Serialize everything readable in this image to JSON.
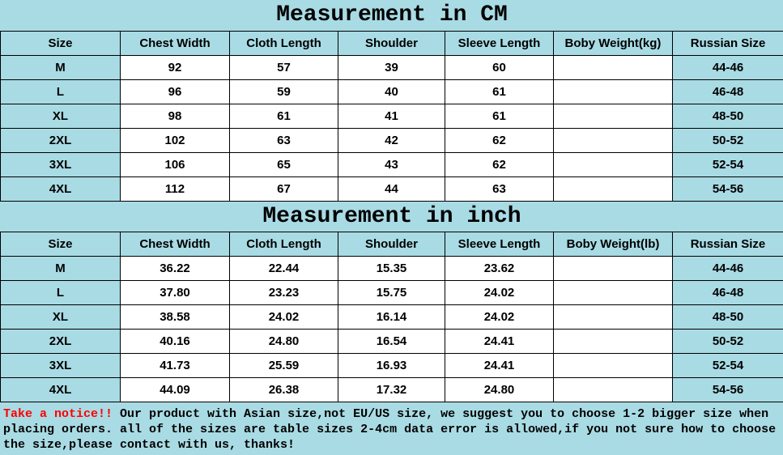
{
  "colors": {
    "background": "#a9dbe4",
    "cell_background": "#ffffff",
    "border": "#000000",
    "notice_label_color": "#ff0000",
    "text": "#000000"
  },
  "chart_data": [
    {
      "type": "table",
      "title": "Measurement in CM",
      "columns": [
        "Size",
        "Chest Width",
        "Cloth Length",
        "Shoulder",
        "Sleeve Length",
        "Boby Weight(kg)",
        "Russian Size"
      ],
      "rows": [
        [
          "M",
          "92",
          "57",
          "39",
          "60",
          "",
          "44-46"
        ],
        [
          "L",
          "96",
          "59",
          "40",
          "61",
          "",
          "46-48"
        ],
        [
          "XL",
          "98",
          "61",
          "41",
          "61",
          "",
          "48-50"
        ],
        [
          "2XL",
          "102",
          "63",
          "42",
          "62",
          "",
          "50-52"
        ],
        [
          "3XL",
          "106",
          "65",
          "43",
          "62",
          "",
          "52-54"
        ],
        [
          "4XL",
          "112",
          "67",
          "44",
          "63",
          "",
          "54-56"
        ]
      ]
    },
    {
      "type": "table",
      "title": "Measurement in inch",
      "columns": [
        "Size",
        "Chest Width",
        "Cloth Length",
        "Shoulder",
        "Sleeve Length",
        "Boby Weight(lb)",
        "Russian Size"
      ],
      "rows": [
        [
          "M",
          "36.22",
          "22.44",
          "15.35",
          "23.62",
          "",
          "44-46"
        ],
        [
          "L",
          "37.80",
          "23.23",
          "15.75",
          "24.02",
          "",
          "46-48"
        ],
        [
          "XL",
          "38.58",
          "24.02",
          "16.14",
          "24.02",
          "",
          "48-50"
        ],
        [
          "2XL",
          "40.16",
          "24.80",
          "16.54",
          "24.41",
          "",
          "50-52"
        ],
        [
          "3XL",
          "41.73",
          "25.59",
          "16.93",
          "24.41",
          "",
          "52-54"
        ],
        [
          "4XL",
          "44.09",
          "26.38",
          "17.32",
          "24.80",
          "",
          "54-56"
        ]
      ]
    }
  ],
  "notice": {
    "label": "Take a notice!!",
    "text": "Our product with Asian size,not EU/US size, we suggest you to choose 1-2 bigger size when placing orders. all of the sizes are table sizes 2-4cm data error is allowed,if you not sure how to choose the size,please contact with us, thanks!"
  }
}
